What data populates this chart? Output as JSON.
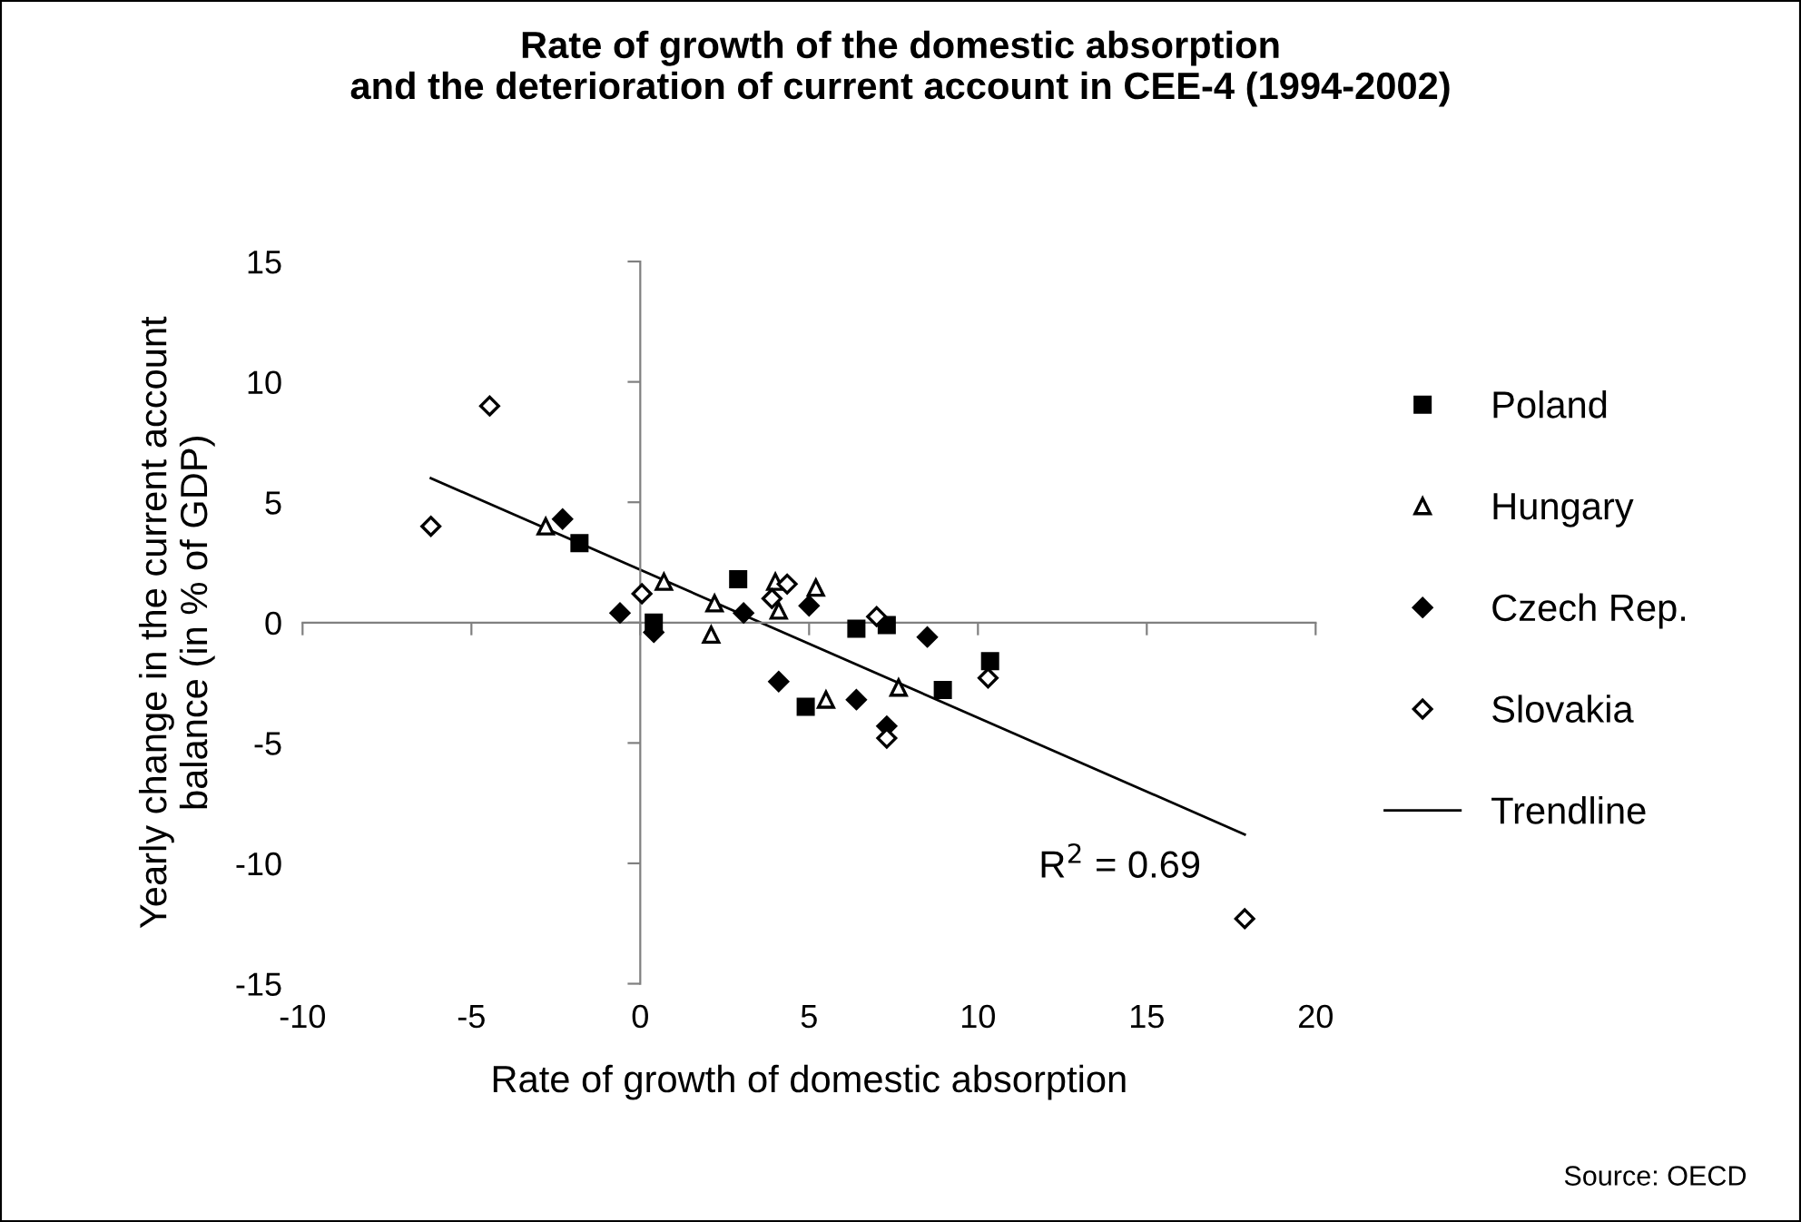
{
  "chart_data": {
    "type": "scatter",
    "title": "Rate of growth of the domestic absorption\nand the deterioration of current account in CEE-4 (1994-2002)",
    "xlabel": "Rate of growth of domestic absorption",
    "ylabel": "Yearly change in the current account\nbalance (in % of GDP)",
    "xlim": [
      -10,
      20
    ],
    "xticks": [
      -10,
      -5,
      0,
      5,
      10,
      15,
      20
    ],
    "ylim": [
      -15,
      15
    ],
    "yticks": [
      -15,
      -10,
      -5,
      0,
      5,
      10,
      15
    ],
    "legend": "right",
    "annotations": [
      "R$^{2}$ = 0.69",
      "Source: OECD"
    ],
    "series": [
      {
        "name": "Poland",
        "color": "#000000",
        "marker": "square",
        "x": [
          -1.8,
          2.9,
          0.4,
          6.4,
          7.3,
          10.36,
          8.96,
          4.9
        ],
        "values": [
          3.3,
          1.8,
          0.0,
          -0.25,
          -0.1,
          -1.6,
          -2.8,
          -3.5
        ]
      },
      {
        "name": "Hungary",
        "color": "#ffffff",
        "marker": "triangle",
        "x": [
          -2.8,
          0.7,
          2.2,
          2.1,
          4.0,
          4.1,
          5.2,
          7.65,
          5.5
        ],
        "values": [
          4.0,
          1.7,
          0.8,
          -0.5,
          1.7,
          0.5,
          1.45,
          -2.7,
          -3.2
        ]
      },
      {
        "name": "Czech Rep.",
        "color": "#000000",
        "marker": "diamond",
        "x": [
          -2.3,
          -0.6,
          0.4,
          3.06,
          5.0,
          8.5,
          4.1,
          6.4,
          7.3
        ],
        "values": [
          4.3,
          0.4,
          -0.4,
          0.4,
          0.7,
          -0.6,
          -2.45,
          -3.2,
          -4.3
        ]
      },
      {
        "name": "Slovakia",
        "color": "#ffffff",
        "marker": "diamond",
        "x": [
          -4.46,
          -6.2,
          0.05,
          4.35,
          3.9,
          7.0,
          10.3,
          7.3,
          17.9
        ],
        "values": [
          9.0,
          4.0,
          1.2,
          1.6,
          1.0,
          0.25,
          -2.3,
          -4.8,
          -12.3
        ]
      },
      {
        "name": "Trendline",
        "type": "line",
        "color": "#000000",
        "marker": "none",
        "x": [
          -6.2,
          17.9
        ],
        "values": [
          6.0,
          -8.8
        ]
      }
    ]
  }
}
